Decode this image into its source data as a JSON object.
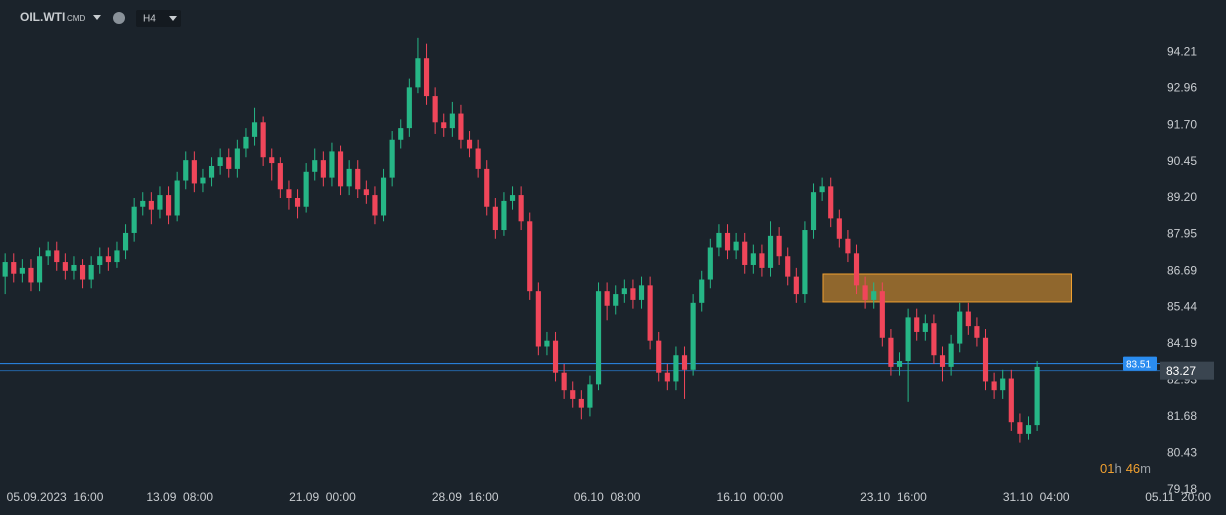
{
  "chart_data": {
    "type": "candlestick",
    "symbol": "OIL.WTI",
    "market": "CMD",
    "timeframe": "H4",
    "up_color": "#26b686",
    "down_color": "#f0465a",
    "open": [
      86.5,
      87.0,
      86.6,
      86.8,
      86.3,
      87.2,
      87.4,
      87.0,
      86.7,
      86.9,
      86.4,
      86.9,
      87.2,
      87.0,
      87.4,
      88.0,
      88.9,
      89.1,
      88.8,
      89.3,
      88.6,
      89.8,
      90.5,
      89.7,
      89.9,
      90.3,
      90.6,
      90.2,
      90.9,
      91.3,
      91.8,
      90.6,
      90.4,
      89.5,
      89.2,
      88.9,
      90.1,
      90.5,
      89.9,
      90.8,
      89.6,
      90.2,
      89.5,
      89.3,
      88.6,
      89.9,
      91.2,
      91.6,
      93.0,
      94.0,
      92.7,
      91.8,
      91.6,
      92.1,
      91.2,
      90.9,
      90.2,
      88.9,
      88.1,
      89.1,
      89.3,
      88.4,
      86.0,
      84.1,
      84.3,
      83.2,
      82.6,
      82.3,
      82.0,
      82.8,
      86.0,
      85.5,
      85.9,
      86.1,
      85.7,
      86.2,
      84.3,
      83.2,
      82.9,
      83.8,
      83.3,
      85.6,
      86.4,
      87.5,
      88.0,
      87.4,
      87.7,
      86.9,
      87.3,
      86.8,
      87.9,
      87.2,
      86.5,
      85.9,
      88.1,
      89.4,
      89.6,
      88.5,
      87.8,
      87.3,
      86.2,
      85.7,
      86.0,
      84.4,
      83.4,
      83.6,
      85.1,
      84.6,
      84.9,
      83.8,
      83.4,
      84.2,
      85.3,
      84.8,
      84.4,
      82.9,
      82.6,
      83.0,
      81.5,
      81.1,
      81.4
    ],
    "high": [
      87.3,
      87.3,
      87.1,
      87.1,
      87.5,
      87.7,
      87.7,
      87.3,
      87.2,
      87.1,
      87.2,
      87.5,
      87.5,
      87.7,
      88.3,
      89.2,
      89.4,
      89.4,
      89.6,
      89.6,
      90.1,
      90.8,
      90.8,
      90.2,
      90.6,
      90.9,
      90.9,
      91.2,
      91.6,
      92.3,
      92.0,
      90.9,
      90.6,
      89.8,
      89.5,
      90.4,
      90.9,
      90.8,
      91.1,
      91.0,
      90.5,
      90.5,
      89.8,
      89.6,
      90.2,
      91.5,
      91.9,
      93.3,
      94.7,
      94.5,
      93.0,
      92.1,
      92.5,
      92.4,
      91.5,
      91.2,
      90.5,
      89.2,
      89.4,
      89.6,
      89.6,
      88.7,
      86.3,
      84.6,
      84.6,
      83.5,
      82.9,
      82.6,
      83.1,
      86.3,
      86.3,
      86.2,
      86.4,
      86.4,
      86.5,
      86.5,
      84.6,
      83.5,
      84.1,
      84.1,
      85.9,
      86.7,
      87.8,
      88.3,
      88.3,
      88.0,
      88.0,
      87.6,
      87.6,
      88.4,
      88.2,
      87.5,
      86.8,
      88.4,
      89.7,
      89.9,
      89.9,
      88.8,
      88.1,
      87.6,
      86.5,
      86.3,
      86.3,
      84.7,
      83.9,
      85.4,
      85.4,
      85.2,
      85.2,
      84.1,
      84.5,
      85.6,
      85.6,
      85.1,
      84.7,
      83.2,
      83.3,
      83.3,
      81.8,
      81.7,
      83.6
    ],
    "low": [
      85.9,
      86.3,
      86.3,
      86.0,
      86.0,
      86.9,
      86.7,
      86.4,
      86.4,
      86.1,
      86.1,
      86.6,
      86.7,
      86.8,
      87.1,
      87.7,
      88.6,
      88.3,
      88.5,
      88.3,
      88.4,
      89.5,
      89.4,
      89.4,
      89.6,
      90.0,
      89.9,
      89.9,
      90.6,
      91.0,
      90.3,
      89.8,
      89.2,
      88.8,
      88.5,
      88.7,
      89.8,
      89.6,
      89.6,
      89.3,
      89.3,
      89.2,
      89.0,
      88.3,
      88.4,
      89.6,
      90.9,
      91.3,
      92.8,
      92.4,
      91.4,
      91.3,
      91.3,
      90.9,
      90.6,
      89.9,
      88.6,
      87.8,
      87.9,
      88.8,
      88.1,
      85.7,
      83.8,
      83.8,
      82.9,
      82.3,
      82.0,
      81.6,
      81.7,
      82.6,
      85.0,
      85.2,
      85.6,
      85.4,
      85.4,
      84.0,
      82.9,
      82.6,
      82.6,
      82.3,
      83.1,
      85.3,
      86.1,
      87.2,
      87.1,
      87.1,
      86.6,
      86.6,
      86.5,
      86.5,
      86.9,
      86.2,
      85.6,
      85.6,
      87.8,
      89.1,
      88.2,
      87.5,
      87.0,
      85.9,
      85.4,
      85.4,
      84.1,
      83.1,
      83.1,
      82.2,
      84.3,
      84.3,
      83.5,
      82.9,
      83.1,
      83.9,
      84.5,
      84.1,
      82.6,
      82.3,
      82.3,
      81.2,
      80.8,
      80.9,
      81.2
    ],
    "close": [
      87.0,
      86.6,
      86.8,
      86.3,
      87.2,
      87.4,
      87.0,
      86.7,
      86.9,
      86.4,
      86.9,
      87.2,
      87.0,
      87.4,
      88.0,
      88.9,
      89.1,
      88.8,
      89.3,
      88.6,
      89.8,
      90.5,
      89.7,
      89.9,
      90.3,
      90.6,
      90.2,
      90.9,
      91.3,
      91.8,
      90.6,
      90.4,
      89.5,
      89.2,
      88.9,
      90.1,
      90.5,
      89.9,
      90.8,
      89.6,
      90.2,
      89.5,
      89.3,
      88.6,
      89.9,
      91.2,
      91.6,
      93.0,
      94.0,
      92.7,
      91.8,
      91.6,
      92.1,
      91.2,
      90.9,
      90.2,
      88.9,
      88.1,
      89.1,
      89.3,
      88.4,
      86.0,
      84.1,
      84.3,
      83.2,
      82.6,
      82.3,
      82.0,
      82.8,
      86.0,
      85.5,
      85.9,
      86.1,
      85.7,
      86.2,
      84.3,
      83.2,
      82.9,
      83.8,
      83.3,
      85.6,
      86.4,
      87.5,
      88.0,
      87.4,
      87.7,
      86.9,
      87.3,
      86.8,
      87.9,
      87.2,
      86.5,
      85.9,
      88.1,
      89.4,
      89.6,
      88.5,
      87.8,
      87.3,
      86.2,
      85.7,
      86.0,
      84.4,
      83.4,
      83.6,
      85.1,
      84.6,
      84.9,
      83.8,
      83.4,
      84.2,
      85.3,
      84.8,
      84.4,
      82.9,
      82.6,
      83.0,
      81.5,
      81.1,
      81.4,
      83.4
    ],
    "xlim": [
      -0.6,
      141.5
    ],
    "xticks": [
      {
        "value": 5.8,
        "label": "05.09.2023  16:00"
      },
      {
        "value": 20.3,
        "label": "13.09  08:00"
      },
      {
        "value": 36.9,
        "label": "21.09  00:00"
      },
      {
        "value": 53.5,
        "label": "28.09  16:00"
      },
      {
        "value": 70,
        "label": "06.10  08:00"
      },
      {
        "value": 86.6,
        "label": "16.10  00:00"
      },
      {
        "value": 103.3,
        "label": "23.10  16:00"
      },
      {
        "value": 119.9,
        "label": "31.10  04:00"
      },
      {
        "value": 136.4,
        "label": "05.11  20:00"
      }
    ],
    "ylim": [
      79.0,
      96.0
    ],
    "yticks": [
      94.21,
      92.96,
      {
        "value": 91.7,
        "label": "91.70"
      },
      90.45,
      {
        "value": 89.2,
        "label": "89.20"
      },
      87.95,
      86.69,
      85.44,
      84.19,
      82.93,
      81.68,
      80.43,
      79.18
    ],
    "zone": {
      "x": [
        95.1,
        124.0
      ],
      "y": [
        85.63,
        86.59
      ],
      "color": "#f0a030"
    },
    "bid_line": {
      "value": 83.51,
      "color": "#2a8cf0"
    },
    "last_line": {
      "value": 83.27,
      "color": "#3a4550"
    },
    "countdown": {
      "hours": "01",
      "h": "h",
      "minutes": "46",
      "m": "m"
    }
  }
}
